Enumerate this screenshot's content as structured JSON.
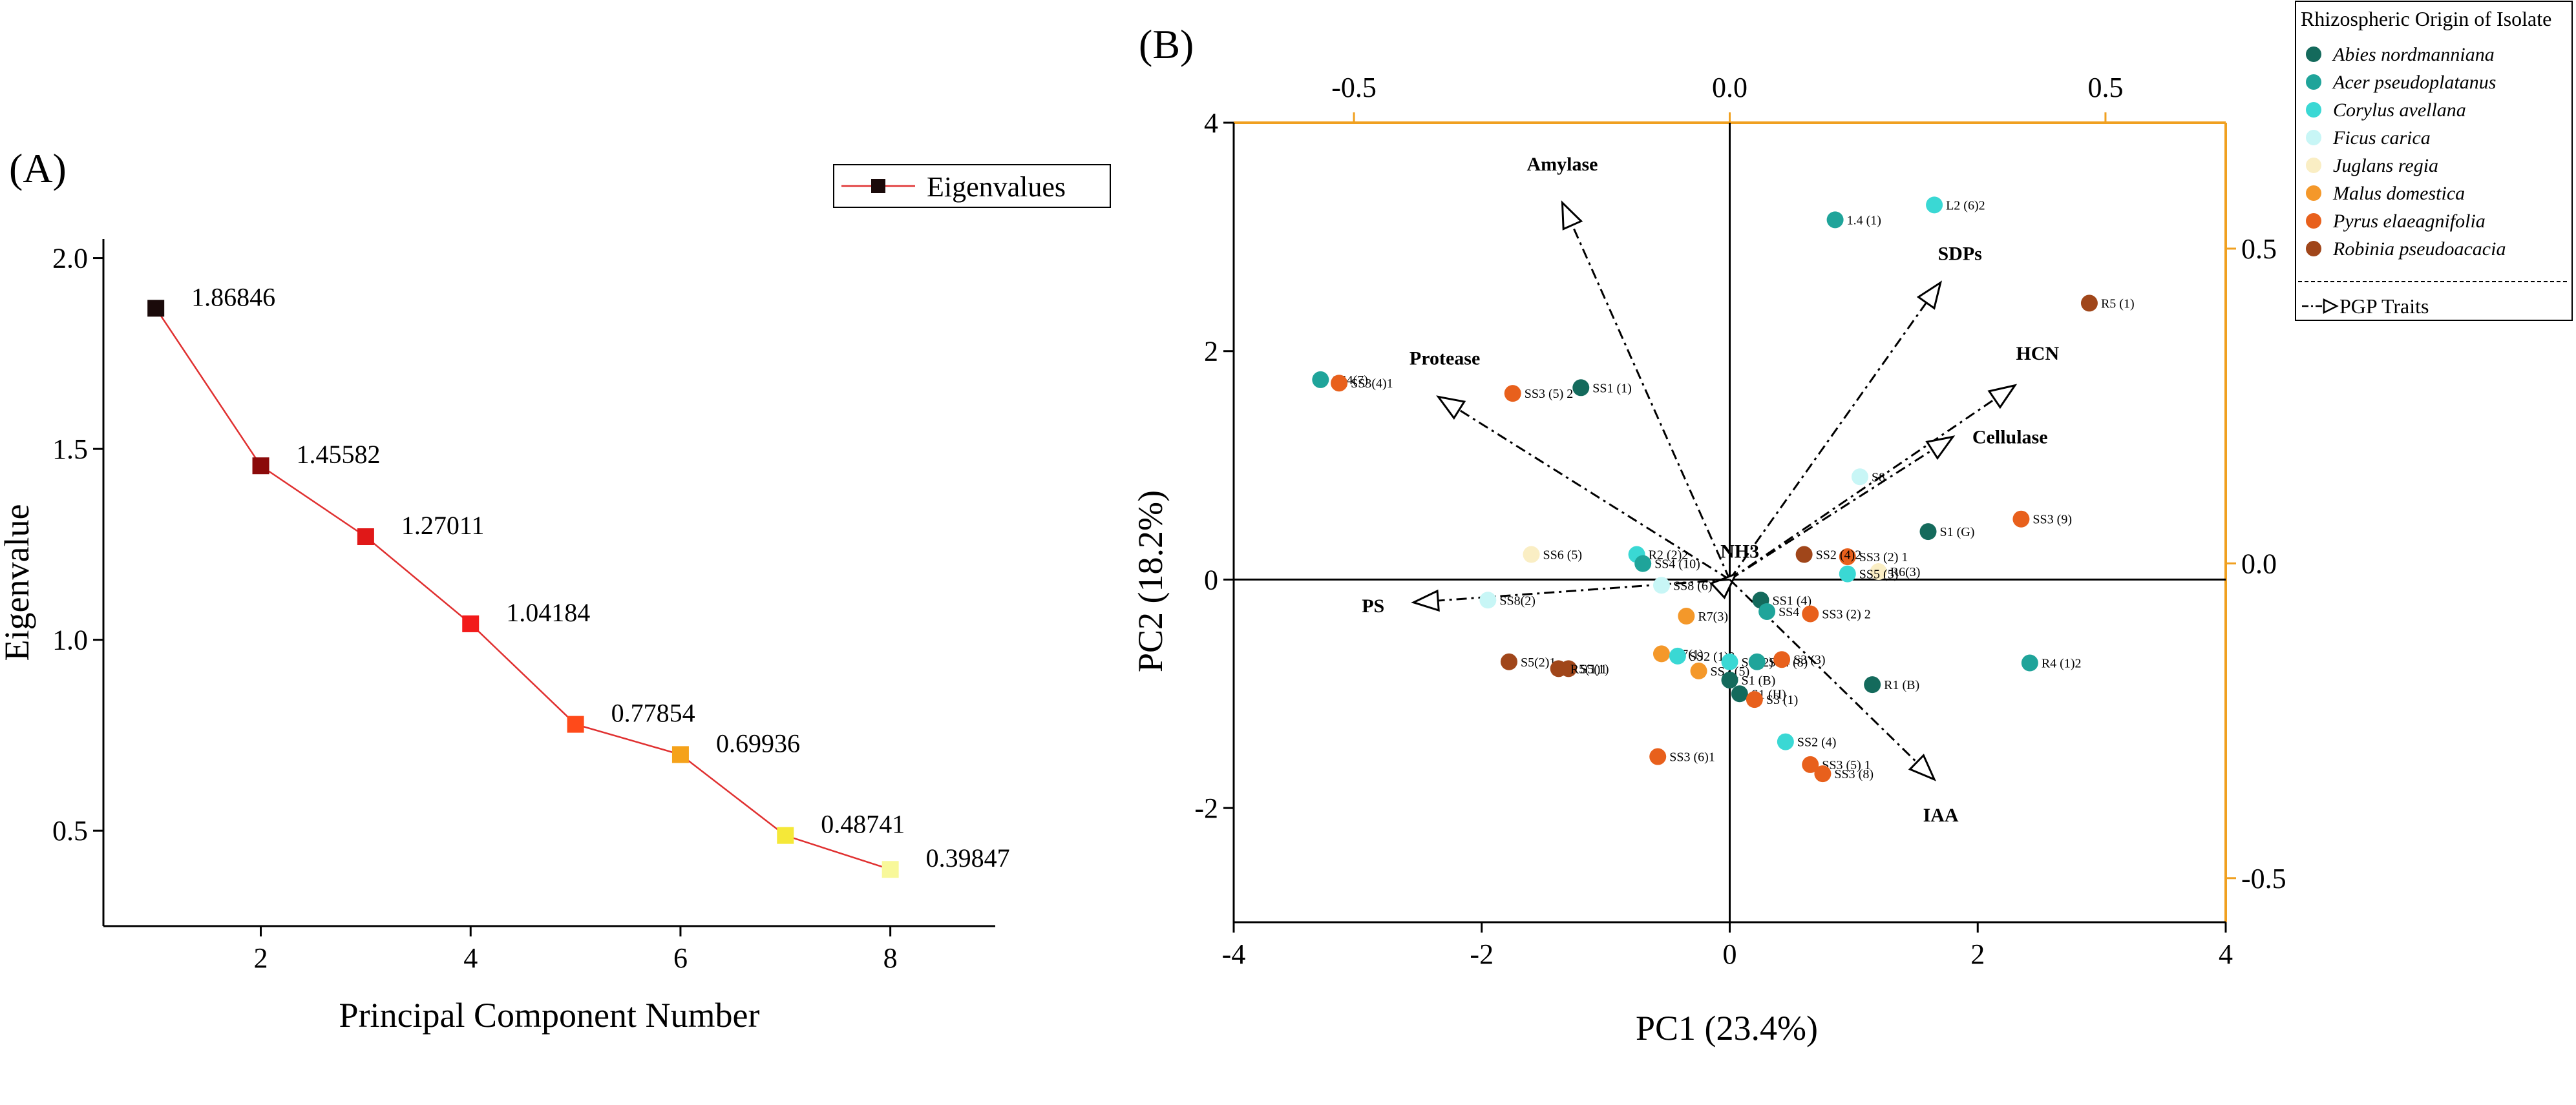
{
  "panel_a_label": "(A)",
  "panel_b_label": "(B)",
  "chart_data": [
    {
      "type": "line",
      "title": "",
      "xlabel": "Principal Component Number",
      "ylabel": "Eigenvalue",
      "xlim": [
        0.5,
        9
      ],
      "ylim": [
        0.25,
        2.05
      ],
      "xticks": [
        2,
        4,
        6,
        8
      ],
      "yticks": [
        0.5,
        1.0,
        1.5,
        2.0
      ],
      "ytick_labels": [
        "0.5",
        "1.0",
        "1.5",
        "2.0"
      ],
      "legend": "Eigenvalues",
      "line_color": "#e03030",
      "series": [
        {
          "name": "Eigenvalues",
          "x": [
            1,
            2,
            3,
            4,
            5,
            6,
            7,
            8
          ],
          "values": [
            1.86846,
            1.45582,
            1.27011,
            1.04184,
            0.77854,
            0.69936,
            0.48741,
            0.39847
          ],
          "labels": [
            "1.86846",
            "1.45582",
            "1.27011",
            "1.04184",
            "0.77854",
            "0.69936",
            "0.48741",
            "0.39847"
          ],
          "colors": [
            "#1a0a0a",
            "#8b0a0a",
            "#e01818",
            "#f21a1a",
            "#ff4a1a",
            "#f5a21a",
            "#f5e838",
            "#f8f89a"
          ]
        }
      ]
    },
    {
      "type": "scatter",
      "title": "",
      "xlabel": "PC1 (23.4%)",
      "ylabel": "PC2 (18.2%)",
      "xlim": [
        -4,
        4
      ],
      "ylim": [
        -3,
        4
      ],
      "xticks": [
        -4,
        -2,
        0,
        2,
        4
      ],
      "xtick_labels": [
        "-4",
        "-2",
        "0",
        "2",
        "4"
      ],
      "yticks": [
        -2,
        0,
        2,
        4
      ],
      "ytick_labels": [
        "-2",
        "0",
        "2",
        "4"
      ],
      "top_axis": {
        "lim": [
          -0.66,
          0.66
        ],
        "ticks": [
          -0.5,
          0.0,
          0.5
        ],
        "tick_labels": [
          "-0.5",
          "0.0",
          "0.5"
        ]
      },
      "right_axis": {
        "lim": [
          -0.57,
          0.7
        ],
        "ticks": [
          -0.5,
          0.0,
          0.5
        ],
        "tick_labels": [
          "-0.5",
          "0.0",
          "0.5"
        ]
      },
      "secondary_axis_color": "#f0a020",
      "legend_title": "Rhizospheric Origin of Isolate",
      "groups": [
        {
          "name": "Abies nordmanniana",
          "color": "#146a5c"
        },
        {
          "name": "Acer pseudoplatanus",
          "color": "#1fa49a"
        },
        {
          "name": "Corylus avellana",
          "color": "#3ad8d4"
        },
        {
          "name": "Ficus carica",
          "color": "#c8f6f6"
        },
        {
          "name": "Juglans regia",
          "color": "#faeec4"
        },
        {
          "name": "Malus domestica",
          "color": "#f4982a"
        },
        {
          "name": "Pyrus elaeagnifolia",
          "color": "#e8601c"
        },
        {
          "name": "Robinia pseudoacacia",
          "color": "#a0461a"
        }
      ],
      "vectors_legend": "PGP Traits",
      "vectors": [
        {
          "name": "Amylase",
          "x": -1.35,
          "y": 3.3
        },
        {
          "name": "SDPs",
          "x": 1.7,
          "y": 2.6
        },
        {
          "name": "HCN",
          "x": 2.3,
          "y": 1.7
        },
        {
          "name": "Cellulase",
          "x": 1.8,
          "y": 1.25
        },
        {
          "name": "Protease",
          "x": -2.35,
          "y": 1.6
        },
        {
          "name": "NH3",
          "x": 0.05,
          "y": 0.05
        },
        {
          "name": "PS",
          "x": -2.55,
          "y": -0.2
        },
        {
          "name": "IAA",
          "x": 1.65,
          "y": -1.75
        }
      ],
      "points": [
        {
          "label": "1.4 (1)",
          "x": 0.85,
          "y": 3.15,
          "group": 1
        },
        {
          "label": "L2 (6)2",
          "x": 1.65,
          "y": 3.28,
          "group": 2
        },
        {
          "label": "R5 (1)",
          "x": 2.9,
          "y": 2.42,
          "group": 7
        },
        {
          "label": "SS4(7)",
          "x": -3.3,
          "y": 1.75,
          "group": 1
        },
        {
          "label": "SS3(4)1",
          "x": -3.15,
          "y": 1.72,
          "group": 6
        },
        {
          "label": "SS3 (5) 2",
          "x": -1.75,
          "y": 1.63,
          "group": 6
        },
        {
          "label": "SS1 (1)",
          "x": -1.2,
          "y": 1.68,
          "group": 0
        },
        {
          "label": "S8",
          "x": 1.05,
          "y": 0.9,
          "group": 3
        },
        {
          "label": "S1 (G)",
          "x": 1.6,
          "y": 0.42,
          "group": 0
        },
        {
          "label": "SS3 (9)",
          "x": 2.35,
          "y": 0.53,
          "group": 6
        },
        {
          "label": "SS3 (2) 1",
          "x": 0.95,
          "y": 0.2,
          "group": 6
        },
        {
          "label": "R6(3)",
          "x": 1.2,
          "y": 0.07,
          "group": 4
        },
        {
          "label": "SS5 (5)",
          "x": 0.95,
          "y": 0.05,
          "group": 2
        },
        {
          "label": "SS2 (4)2",
          "x": 0.6,
          "y": 0.22,
          "group": 7
        },
        {
          "label": "R2 (2)2",
          "x": -0.75,
          "y": 0.22,
          "group": 2
        },
        {
          "label": "SS6 (5)",
          "x": -1.6,
          "y": 0.22,
          "group": 4
        },
        {
          "label": "SS4 (10)",
          "x": -0.7,
          "y": 0.14,
          "group": 1
        },
        {
          "label": "SS8 (6)",
          "x": -0.55,
          "y": -0.05,
          "group": 3
        },
        {
          "label": "SS8(2)",
          "x": -1.95,
          "y": -0.18,
          "group": 3
        },
        {
          "label": "SS1 (4)",
          "x": 0.25,
          "y": -0.18,
          "group": 0
        },
        {
          "label": "SS4 (5)",
          "x": 0.3,
          "y": -0.28,
          "group": 1
        },
        {
          "label": "SS3 (2) 2",
          "x": 0.65,
          "y": -0.3,
          "group": 6
        },
        {
          "label": "R7(3)",
          "x": -0.35,
          "y": -0.32,
          "group": 5
        },
        {
          "label": "R7(1)",
          "x": -0.55,
          "y": -0.65,
          "group": 5
        },
        {
          "label": "SS2 (1)2",
          "x": -0.42,
          "y": -0.67,
          "group": 2
        },
        {
          "label": "SS7 (5)",
          "x": -0.25,
          "y": -0.8,
          "group": 5
        },
        {
          "label": "S4 (2)",
          "x": 0.0,
          "y": -0.72,
          "group": 2
        },
        {
          "label": "SS4 (8)",
          "x": 0.22,
          "y": -0.72,
          "group": 1
        },
        {
          "label": "S3 (3)",
          "x": 0.42,
          "y": -0.7,
          "group": 6
        },
        {
          "label": "S1 (B)",
          "x": 0.0,
          "y": -0.88,
          "group": 0
        },
        {
          "label": "S1 (H)",
          "x": 0.08,
          "y": -1.0,
          "group": 0
        },
        {
          "label": "S3 (1)",
          "x": 0.2,
          "y": -1.05,
          "group": 6
        },
        {
          "label": "R1 (B)",
          "x": 1.15,
          "y": -0.92,
          "group": 0
        },
        {
          "label": "R4 (1)2",
          "x": 2.42,
          "y": -0.73,
          "group": 1
        },
        {
          "label": "S5(2)1",
          "x": -1.78,
          "y": -0.72,
          "group": 7
        },
        {
          "label": "S5(1)",
          "x": -1.3,
          "y": -0.78,
          "group": 7
        },
        {
          "label": "R5(1)1",
          "x": -1.38,
          "y": -0.78,
          "group": 7
        },
        {
          "label": "SS2 (4)",
          "x": 0.45,
          "y": -1.42,
          "group": 2
        },
        {
          "label": "SS3 (5) 1",
          "x": 0.65,
          "y": -1.62,
          "group": 6
        },
        {
          "label": "SS3 (8)",
          "x": 0.75,
          "y": -1.7,
          "group": 6
        },
        {
          "label": "SS3 (6)1",
          "x": -0.58,
          "y": -1.55,
          "group": 6
        }
      ]
    }
  ]
}
